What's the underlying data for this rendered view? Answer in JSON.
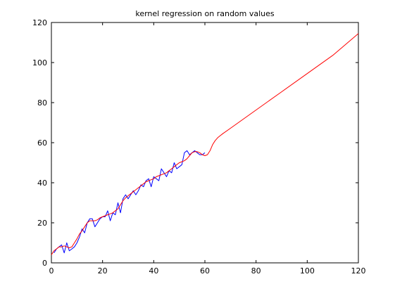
{
  "chart_data": {
    "type": "line",
    "title": "kernel regression on random values",
    "xlabel": "",
    "ylabel": "",
    "xlim": [
      0,
      120
    ],
    "ylim": [
      0,
      120
    ],
    "xticks": [
      0,
      20,
      40,
      60,
      80,
      100,
      120
    ],
    "yticks": [
      0,
      20,
      40,
      60,
      80,
      100,
      120
    ],
    "grid": false,
    "legend": "none",
    "series": [
      {
        "color": "#0000ff",
        "x": [
          1,
          2,
          3,
          4,
          5,
          6,
          7,
          8,
          9,
          10,
          11,
          12,
          13,
          14,
          15,
          16,
          17,
          18,
          19,
          20,
          21,
          22,
          23,
          24,
          25,
          26,
          27,
          28,
          29,
          30,
          31,
          32,
          33,
          34,
          35,
          36,
          37,
          38,
          39,
          40,
          41,
          42,
          43,
          44,
          45,
          46,
          47,
          48,
          49,
          50,
          51,
          52,
          53,
          54,
          55,
          56,
          57,
          58,
          59,
          60
        ],
        "y": [
          5,
          7,
          8,
          9,
          5,
          10,
          6,
          7,
          8,
          10,
          13,
          17,
          15,
          20,
          22,
          22,
          18,
          20,
          22,
          23,
          23,
          26,
          21,
          25,
          24,
          30,
          25,
          32,
          34,
          32,
          34,
          36,
          34,
          36,
          39,
          38,
          41,
          42,
          38,
          43,
          42,
          41,
          47,
          45,
          43,
          46,
          45,
          50,
          47,
          48,
          49,
          55,
          56,
          54,
          55,
          56,
          55,
          54,
          54,
          55
        ]
      },
      {
        "color": "#ff0000",
        "x": [
          0,
          1,
          2,
          3,
          4,
          5,
          6,
          7,
          8,
          9,
          10,
          11,
          12,
          13,
          14,
          15,
          16,
          17,
          18,
          19,
          20,
          21,
          22,
          23,
          24,
          25,
          26,
          27,
          28,
          29,
          30,
          31,
          32,
          33,
          34,
          35,
          36,
          37,
          38,
          39,
          40,
          41,
          42,
          43,
          44,
          45,
          46,
          47,
          48,
          49,
          50,
          51,
          52,
          53,
          54,
          55,
          56,
          57,
          58,
          59,
          60,
          61,
          62,
          63,
          64,
          65,
          66,
          67,
          70,
          80,
          90,
          100,
          110,
          120
        ],
        "y": [
          4,
          6,
          7,
          8,
          8,
          8.5,
          8,
          7.5,
          8,
          10,
          12,
          14.5,
          16,
          18,
          20,
          21,
          21,
          21,
          21.5,
          22.5,
          23,
          23.5,
          24,
          24.5,
          25,
          26,
          27,
          29,
          31,
          32.5,
          33.5,
          34.5,
          35.5,
          36.5,
          37.5,
          38.5,
          39.5,
          40.5,
          41,
          41.5,
          42,
          43,
          43.5,
          44,
          44.5,
          45,
          46,
          47,
          48,
          49,
          50,
          50.5,
          51,
          52,
          53.5,
          55,
          55.5,
          55.5,
          55,
          54,
          53.5,
          54,
          56,
          59,
          61,
          62.5,
          63.5,
          64.5,
          67.2,
          76.3,
          85.4,
          94.5,
          103.6,
          114.5
        ]
      }
    ]
  }
}
